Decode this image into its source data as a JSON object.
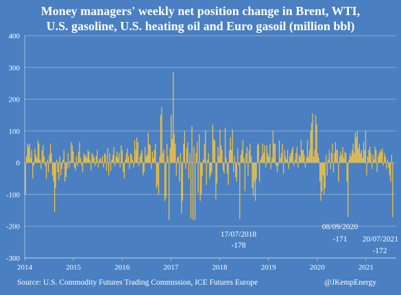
{
  "title_lines": [
    "Money managers' weekly net position change in Brent, WTI,",
    "U.S. gasoline, U.S. heating oil and Euro gasoil (million bbl)"
  ],
  "footer": {
    "source": "Source: U.S. Commodity Futures Trading Commission, ICE Futures Europe",
    "credit": "@JKempEnergy"
  },
  "colors": {
    "background": "#4a7fc1",
    "bars": "#f5c23a",
    "gridlines": "#ffffff",
    "text": "#ffffff"
  },
  "chart_data": {
    "type": "bar",
    "title": "Money managers' weekly net position change in Brent, WTI, U.S. gasoline, U.S. heating oil and Euro gasoil (million bbl)",
    "xlabel": "",
    "ylabel": "",
    "ylim": [
      -300,
      400
    ],
    "yticks": [
      -300,
      -200,
      -100,
      0,
      100,
      200,
      300,
      400
    ],
    "ytick_labels": [
      "-300",
      "-200",
      "-100",
      "0",
      "100",
      "200",
      "300",
      "400"
    ],
    "xlim": [
      2014.0,
      2021.62
    ],
    "xticks": [
      2014,
      2015,
      2016,
      2017,
      2018,
      2019,
      2020,
      2021
    ],
    "xtick_labels": [
      "2014",
      "2015",
      "2016",
      "2017",
      "2018",
      "2019",
      "2020",
      "2021"
    ],
    "grid": "horizontal",
    "legend": "none",
    "frequency": "weekly",
    "start": "2014-01-07",
    "end": "2021-07-20",
    "approximate_weekly_values": [
      -100,
      20,
      60,
      50,
      60,
      15,
      40,
      -50,
      -10,
      45,
      25,
      15,
      70,
      60,
      10,
      -20,
      40,
      55,
      20,
      -10,
      -50,
      10,
      -30,
      25,
      60,
      30,
      -40,
      -60,
      -155,
      -80,
      10,
      -30,
      -55,
      20,
      -40,
      -20,
      10,
      40,
      -60,
      -45,
      -20,
      30,
      -15,
      5,
      65,
      55,
      35,
      -15,
      -25,
      20,
      -10,
      35,
      65,
      15,
      -10,
      -30,
      30,
      20,
      25,
      15,
      40,
      35,
      10,
      -25,
      30,
      25,
      15,
      -10,
      20,
      40,
      -15,
      10,
      15,
      5,
      20,
      -15,
      30,
      25,
      -25,
      45,
      -40,
      30,
      -25,
      10,
      25,
      50,
      -10,
      20,
      35,
      15,
      30,
      -15,
      55,
      40,
      -30,
      -50,
      10,
      30,
      45,
      20,
      -20,
      30,
      25,
      10,
      -15,
      70,
      40,
      80,
      65,
      -10,
      20,
      30,
      40,
      -40,
      -30,
      50,
      20,
      25,
      95,
      60,
      55,
      -20,
      35,
      15,
      40,
      60,
      -80,
      -70,
      -100,
      20,
      150,
      175,
      30,
      40,
      -120,
      -110,
      60,
      20,
      -180,
      45,
      150,
      75,
      285,
      90,
      60,
      -40,
      15,
      20,
      -60,
      30,
      -160,
      -120,
      60,
      100,
      -20,
      45,
      65,
      -50,
      30,
      -175,
      115,
      -180,
      50,
      -180,
      30,
      65,
      -95,
      90,
      -120,
      -100,
      -40,
      10,
      60,
      100,
      -70,
      10,
      30,
      -50,
      -40,
      -30,
      120,
      75,
      70,
      -115,
      -65,
      50,
      20,
      105,
      55,
      40,
      -25,
      -35,
      110,
      15,
      -35,
      -70,
      40,
      80,
      40,
      105,
      -30,
      20,
      -45,
      -60,
      45,
      -10,
      -178,
      25,
      40,
      70,
      15,
      -90,
      30,
      50,
      -40,
      40,
      60,
      20,
      -80,
      -105,
      -60,
      -120,
      -50,
      55,
      60,
      -60,
      10,
      20,
      60,
      30,
      55,
      -15,
      55,
      30,
      20,
      60,
      -20,
      15,
      100,
      60,
      60,
      -10,
      -30,
      -10,
      70,
      15,
      30,
      60,
      -35,
      40,
      20,
      10,
      40,
      -20,
      20,
      30,
      40,
      50,
      -10,
      10,
      30,
      50,
      -15,
      25,
      20,
      70,
      40,
      40,
      25,
      -15,
      15,
      70,
      20,
      40,
      100,
      125,
      155,
      20,
      40,
      150,
      120,
      30,
      15,
      -60,
      -120,
      -90,
      -40,
      -100,
      -80,
      25,
      -40,
      10,
      40,
      -20,
      30,
      60,
      -30,
      30,
      65,
      40,
      40,
      -60,
      20,
      35,
      25,
      50,
      15,
      35,
      30,
      -60,
      -171,
      10,
      30,
      20,
      40,
      60,
      30,
      95,
      80,
      100,
      45,
      60,
      30,
      40,
      15,
      65,
      40,
      100,
      -40,
      20,
      40,
      50,
      30,
      -20,
      25,
      10,
      50,
      40,
      -30,
      20,
      30,
      40,
      35,
      45,
      -10,
      30,
      20,
      -20,
      10,
      -15,
      -40,
      -60,
      25,
      -172
    ]
  },
  "annotations": [
    {
      "date": "17/07/2018",
      "value": "-178"
    },
    {
      "date": "08/09/2020",
      "value": "-171"
    },
    {
      "date": "20/07/2021",
      "value": "-172"
    }
  ]
}
